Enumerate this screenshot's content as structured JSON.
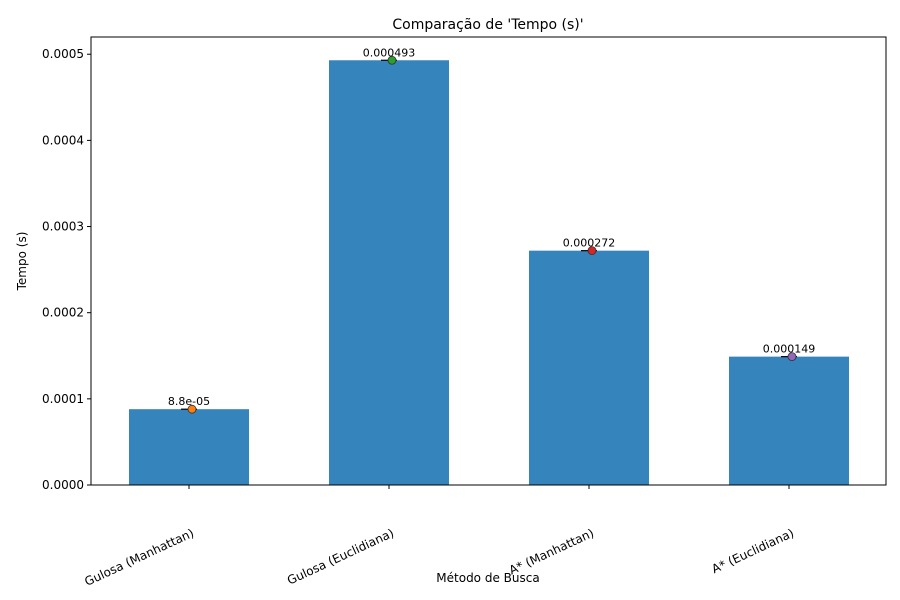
{
  "chart_data": {
    "type": "bar",
    "title": "Comparação de 'Tempo (s)'",
    "xlabel": "Método de Busca",
    "ylabel": "Tempo (s)",
    "categories": [
      "Gulosa (Manhattan)",
      "Gulosa (Euclidiana)",
      "A* (Manhattan)",
      "A* (Euclidiana)"
    ],
    "values": [
      8.8e-05,
      0.000493,
      0.000272,
      0.000149
    ],
    "data_labels": [
      "8.8e-05",
      "0.000493",
      "0.000272",
      "0.000149"
    ],
    "ylim": [
      0,
      0.00052
    ],
    "yticks": [
      0,
      0.0001,
      0.0002,
      0.0003,
      0.0004,
      0.0005
    ],
    "ytick_labels": [
      "0.0000",
      "0.0001",
      "0.0002",
      "0.0003",
      "0.0004",
      "0.0005"
    ],
    "bar_color": "#3584bb",
    "point_colors": [
      "#ff7f0e",
      "#2ca02c",
      "#d62728",
      "#9467bd"
    ],
    "grid": false,
    "legend": "none"
  }
}
